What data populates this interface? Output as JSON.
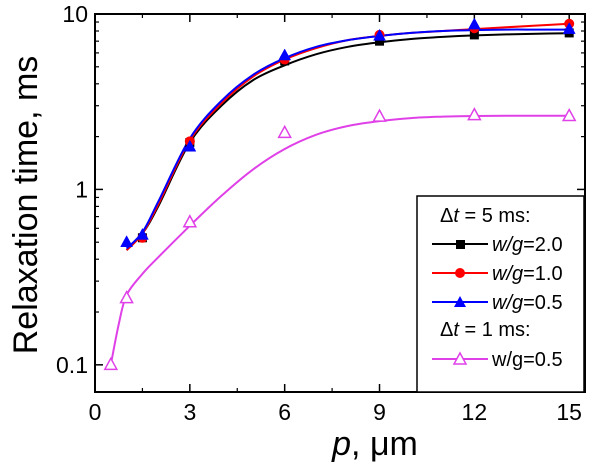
{
  "chart_data": {
    "type": "scatter",
    "xlabel_var": "p",
    "xlabel_unit": ", μm",
    "ylabel": "Relaxation time, ms",
    "xlim": [
      0,
      15.5
    ],
    "ylim": [
      0.07,
      10
    ],
    "yscale": "log",
    "xticks": [
      0,
      3,
      6,
      9,
      12,
      15
    ],
    "yticks": [
      {
        "value": 0.1,
        "label": "0.1"
      },
      {
        "value": 1,
        "label": "1"
      },
      {
        "value": 10,
        "label": "10"
      }
    ],
    "grid": false,
    "legend_placement": "bottom-right",
    "legend": {
      "group1_header": {
        "delta": "Δ",
        "var": "t",
        "rest": " = 5 ms:"
      },
      "group2_header": {
        "delta": "Δ",
        "var": "t",
        "rest": " = 1 ms:"
      }
    },
    "series": [
      {
        "name": "w/g=2.0",
        "label_italic": "w/g",
        "label_rest": "=2.0",
        "color": "#000000",
        "marker": "square",
        "filled": true,
        "x": [
          1.5,
          3,
          6,
          9,
          12,
          15
        ],
        "y": [
          0.53,
          1.85,
          5.4,
          7.0,
          7.6,
          7.8
        ],
        "curve_x": [
          1,
          1.5,
          2,
          3,
          4,
          5,
          6,
          7,
          8,
          9,
          10,
          11,
          12,
          13,
          14,
          15
        ],
        "curve_y": [
          0.45,
          0.56,
          0.8,
          1.85,
          3.0,
          4.2,
          5.1,
          5.9,
          6.5,
          6.9,
          7.2,
          7.4,
          7.55,
          7.65,
          7.72,
          7.76
        ]
      },
      {
        "name": "w/g=1.0",
        "label_italic": "w/g",
        "label_rest": "=1.0",
        "color": "#ff0000",
        "marker": "circle",
        "filled": true,
        "x": [
          1.5,
          3,
          6,
          9,
          12,
          15
        ],
        "y": [
          0.53,
          1.88,
          5.5,
          7.6,
          8.3,
          8.8
        ],
        "curve_x": [
          1,
          1.5,
          2,
          3,
          4,
          5,
          6,
          7,
          8,
          9,
          10,
          11,
          12,
          13,
          14,
          15
        ],
        "curve_y": [
          0.45,
          0.56,
          0.82,
          1.9,
          3.1,
          4.4,
          5.5,
          6.4,
          7.1,
          7.5,
          7.8,
          8.0,
          8.2,
          8.4,
          8.6,
          8.8
        ]
      },
      {
        "name": "w/g=0.5",
        "label_italic": "w/g",
        "label_rest": "=0.5",
        "color": "#0000ff",
        "marker": "triangle",
        "filled": true,
        "x": [
          1,
          1.5,
          3,
          6,
          9,
          12,
          15
        ],
        "y": [
          0.5,
          0.55,
          1.75,
          5.8,
          7.5,
          8.7,
          8.2
        ],
        "curve_x": [
          1,
          1.5,
          2,
          3,
          4,
          5,
          6,
          7,
          8,
          9,
          10,
          11,
          12,
          13,
          14,
          15
        ],
        "curve_y": [
          0.46,
          0.57,
          0.85,
          1.95,
          3.2,
          4.5,
          5.6,
          6.5,
          7.1,
          7.5,
          7.8,
          8.0,
          8.1,
          8.15,
          8.15,
          8.15
        ]
      },
      {
        "name": "w/g=0.5 (Δt = 1 ms)",
        "label_italic": "",
        "label_rest": "w/g=0.5",
        "color": "#e040e8",
        "marker": "triangle",
        "filled": false,
        "x": [
          0.5,
          1,
          3,
          6,
          9,
          12,
          15
        ],
        "y": [
          0.1,
          0.24,
          0.65,
          2.1,
          2.6,
          2.65,
          2.62
        ],
        "curve_x": [
          0.5,
          0.75,
          1,
          1.5,
          2,
          3,
          4,
          5,
          6,
          7,
          8,
          9,
          10,
          11,
          12,
          13,
          14,
          15
        ],
        "curve_y": [
          0.1,
          0.17,
          0.25,
          0.33,
          0.41,
          0.62,
          0.92,
          1.3,
          1.7,
          2.05,
          2.3,
          2.45,
          2.55,
          2.6,
          2.62,
          2.63,
          2.63,
          2.63
        ]
      }
    ]
  }
}
